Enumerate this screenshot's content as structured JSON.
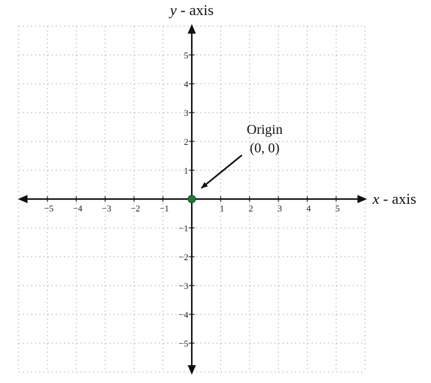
{
  "axes": {
    "y_title_var": "y",
    "y_title_rest": " - axis",
    "x_title_var": "x",
    "x_title_rest": " - axis"
  },
  "x_ticks": [
    "−5",
    "−4",
    "−3",
    "−2",
    "−1",
    "1",
    "2",
    "3",
    "4",
    "5"
  ],
  "y_ticks": [
    "5",
    "4",
    "3",
    "2",
    "1",
    "−1",
    "−2",
    "−3",
    "−4",
    "−5"
  ],
  "origin": {
    "name": "Origin",
    "coords": "(0, 0)",
    "x": 0,
    "y": 0,
    "color": "#1f7a3a"
  },
  "range": {
    "x": [
      -6,
      6
    ],
    "y": [
      -6,
      6
    ]
  },
  "grid": true,
  "colors": {
    "grid": "#b5b5b5",
    "axis": "#111111"
  }
}
